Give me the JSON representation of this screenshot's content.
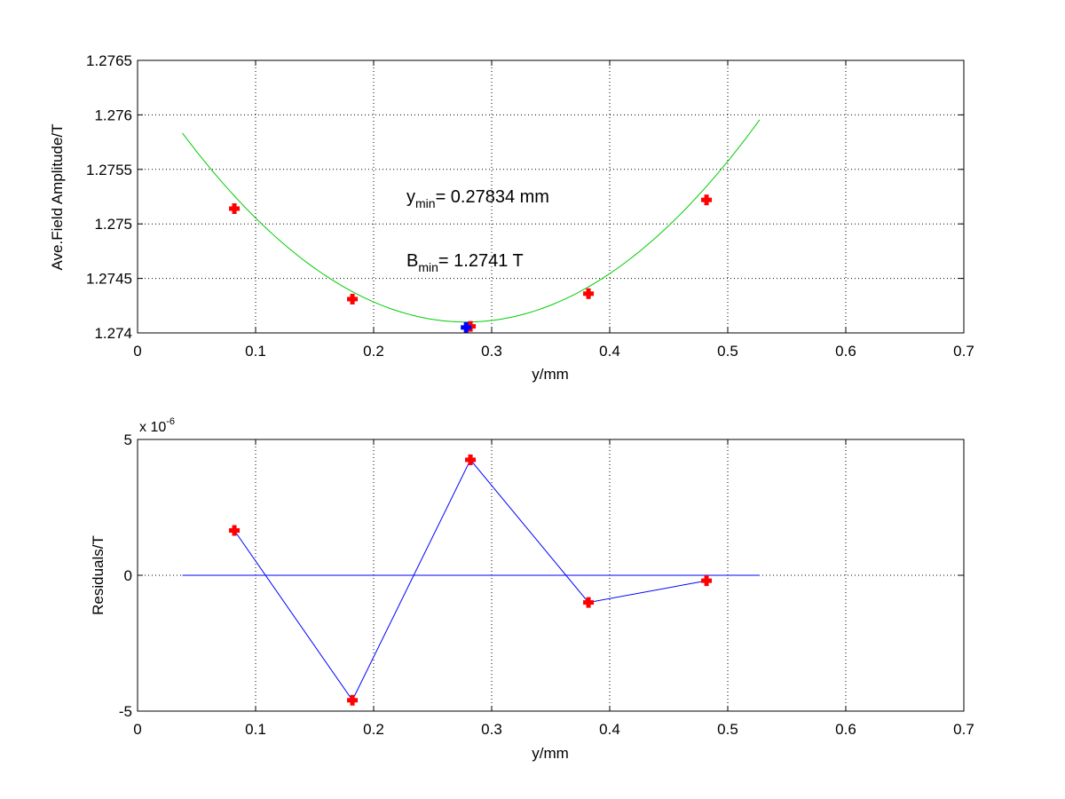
{
  "chart_data": [
    {
      "type": "scatter",
      "xlabel": "y/mm",
      "ylabel": "Ave.Field Amplitude/T",
      "xlim": [
        0,
        0.7
      ],
      "ylim": [
        1.274,
        1.2765
      ],
      "x_ticks": [
        "0",
        "0.1",
        "0.2",
        "0.3",
        "0.4",
        "0.5",
        "0.6",
        "0.7"
      ],
      "y_ticks": [
        "1.274",
        "1.2745",
        "1.275",
        "1.2755",
        "1.276",
        "1.2765"
      ],
      "grid": true,
      "series": [
        {
          "kind": "points",
          "color": "#ff0000",
          "marker": "plus",
          "x": [
            0.082,
            0.182,
            0.282,
            0.382,
            0.482
          ],
          "y": [
            1.27514,
            1.27431,
            1.27406,
            1.27436,
            1.27522
          ]
        },
        {
          "kind": "fit-curve",
          "color": "#00cc00",
          "x_range": [
            0.038,
            0.527
          ],
          "fit": {
            "x_min": 0.27834,
            "y_min": 1.2741,
            "curvature": 0.03
          }
        },
        {
          "kind": "minimum-point",
          "color": "#0000ff",
          "marker": "plus",
          "x": [
            0.27834
          ],
          "y": [
            1.27405
          ]
        }
      ],
      "annotations": [
        {
          "base": "y",
          "sub": "min",
          "text": "= 0.27834 mm"
        },
        {
          "base": "B",
          "sub": "min",
          "text": "= 1.2741 T"
        }
      ]
    },
    {
      "type": "line",
      "xlabel": "y/mm",
      "ylabel": "Residuals/T",
      "xlim": [
        0,
        0.7
      ],
      "ylim": [
        -5e-06,
        5e-06
      ],
      "x_ticks": [
        "0",
        "0.1",
        "0.2",
        "0.3",
        "0.4",
        "0.5",
        "0.6",
        "0.7"
      ],
      "y_ticks": [
        "-5",
        "0",
        "5"
      ],
      "exponent_label": {
        "prefix": "x 10",
        "power": "-6"
      },
      "grid": true,
      "series": [
        {
          "kind": "residuals",
          "color": "#0000ff",
          "marker_color": "#ff0000",
          "marker": "plus",
          "x": [
            0.082,
            0.182,
            0.282,
            0.382,
            0.482
          ],
          "y": [
            1.65e-06,
            -4.6e-06,
            4.25e-06,
            -1e-06,
            -2e-07
          ]
        },
        {
          "kind": "zero-line",
          "color": "#0000ff",
          "x": [
            0.038,
            0.527
          ],
          "y": [
            0,
            0
          ]
        }
      ]
    }
  ]
}
